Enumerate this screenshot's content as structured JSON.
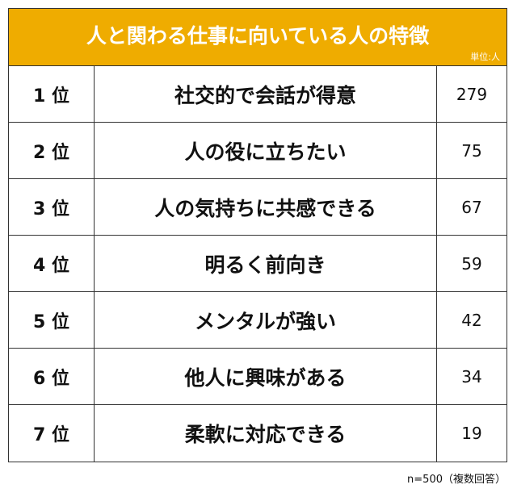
{
  "chart_data": {
    "type": "table",
    "title": "人と関わる仕事に向いている人の特徴",
    "unit": "単位:人",
    "rows": [
      {
        "rank": "1 位",
        "label": "社交的で会話が得意",
        "value": "279"
      },
      {
        "rank": "2 位",
        "label": "人の役に立ちたい",
        "value": "75"
      },
      {
        "rank": "3 位",
        "label": "人の気持ちに共感できる",
        "value": "67"
      },
      {
        "rank": "4 位",
        "label": "明るく前向き",
        "value": "59"
      },
      {
        "rank": "5 位",
        "label": "メンタルが強い",
        "value": "42"
      },
      {
        "rank": "6 位",
        "label": "他人に興味がある",
        "value": "34"
      },
      {
        "rank": "7 位",
        "label": "柔軟に対応できる",
        "value": "19"
      }
    ],
    "note": "n=500（複数回答）",
    "header_color": "#EFAC00"
  }
}
